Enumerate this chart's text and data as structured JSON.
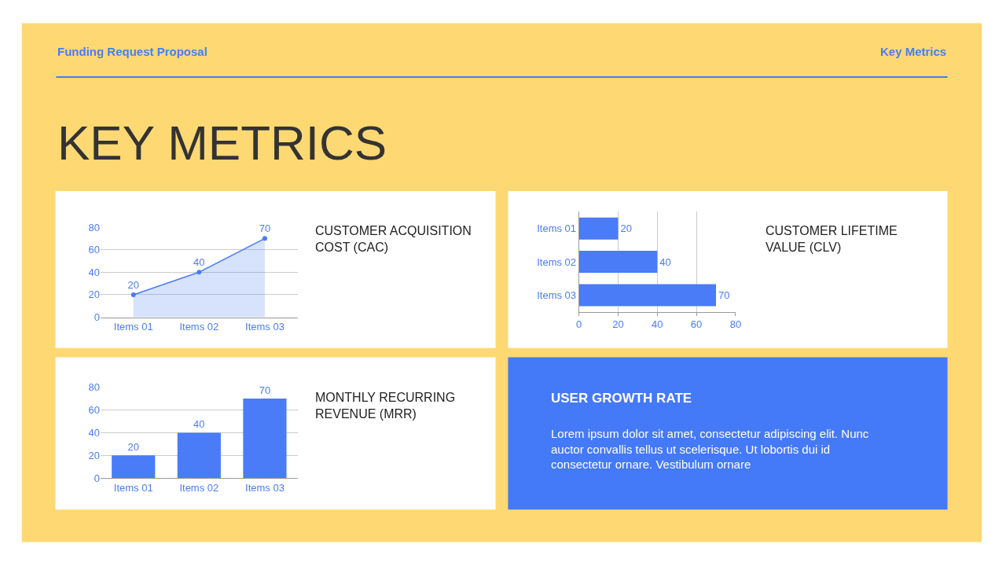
{
  "chart_data": [
    {
      "type": "other",
      "title": "KEY METRICS",
      "annotations": [
        "Funding Request Proposal",
        "Key Metrics"
      ]
    },
    {
      "type": "area",
      "annotations": [
        "CUSTOMER ACQUISITION COST (CAC)"
      ],
      "categories": [
        "Items 01",
        "Items 02",
        "Items 03"
      ],
      "values": [
        20,
        40,
        70
      ],
      "color": "#4a7cf7",
      "ylim": [
        0,
        80
      ],
      "yticks": [
        0,
        20,
        40,
        60,
        80
      ],
      "grid": "y",
      "marker": "circle",
      "data_labels": true
    },
    {
      "type": "bar",
      "orientation": "horizontal",
      "annotations": [
        "CUSTOMER LIFETIME VALUE (CLV)"
      ],
      "categories": [
        "Items 01",
        "Items 02",
        "Items 03"
      ],
      "values": [
        20,
        40,
        70
      ],
      "color": "#4a7cf7",
      "xlim": [
        0,
        80
      ],
      "xticks": [
        0,
        20,
        40,
        60,
        80
      ],
      "grid": "x",
      "data_labels": true
    },
    {
      "type": "bar",
      "annotations": [
        "MONTHLY RECURRING REVENUE (MRR)"
      ],
      "categories": [
        "Items 01",
        "Items 02",
        "Items 03"
      ],
      "values": [
        20,
        40,
        70
      ],
      "color": "#4a7cf7",
      "ylim": [
        0,
        80
      ],
      "yticks": [
        0,
        20,
        40,
        60,
        80
      ],
      "grid": "y",
      "data_labels": true
    },
    {
      "type": "other",
      "title": "USER GROWTH RATE",
      "annotations": [
        "Lorem ipsum dolor sit amet, consectetur adipiscing elit. Nunc auctor convallis tellus ut scelerisque. Ut lobortis dui id consectetur ornare. Vestibulum ornare"
      ]
    }
  ]
}
